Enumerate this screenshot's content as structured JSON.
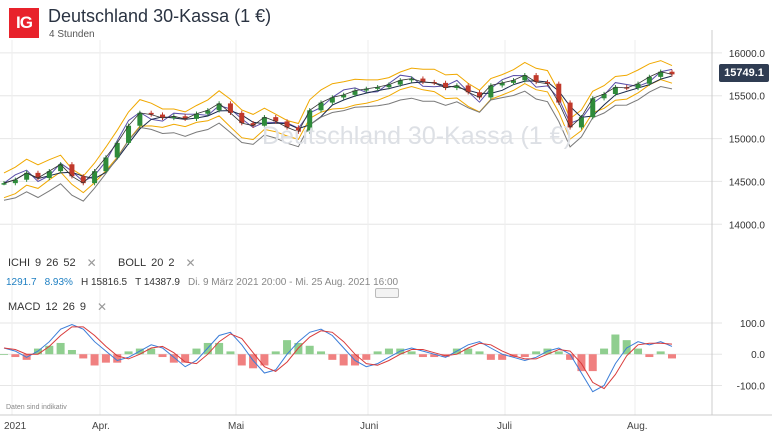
{
  "header": {
    "logo_text": "IG",
    "title": "Deutschland 30-Kassa (1 €)",
    "subtitle": "4 Stunden"
  },
  "watermark": "Deutschland 30-Kassa (1 €)",
  "current_price": "15749.1",
  "indicators": {
    "ichi": {
      "name": "ICHI",
      "params": [
        "9",
        "26",
        "52"
      ]
    },
    "boll": {
      "name": "BOLL",
      "params": [
        "20",
        "2"
      ]
    },
    "macd": {
      "name": "MACD",
      "params": [
        "12",
        "26",
        "9"
      ]
    },
    "close_symbol": "✕"
  },
  "stats": {
    "change": "1291.7",
    "change_pct": "8.93%",
    "high": "H 15816.5",
    "low": "T 14387.9",
    "range": "Di. 9 März 2021 20:00 - Mi. 25 Aug. 2021 16:00"
  },
  "footer_note": "Daten sind indikativ",
  "chart_data": [
    {
      "type": "line",
      "title": "",
      "y_ticks": [
        "16000.0",
        "15500.0",
        "15000.0",
        "14500.0",
        "14000.0"
      ],
      "ylim": [
        13700,
        16150
      ],
      "x_ticks": [
        "2021",
        "Apr.",
        "Mai",
        "Juni",
        "Juli",
        "Aug."
      ],
      "series": [
        {
          "values": [
            14480,
            14520,
            14600,
            14540,
            14620,
            14700,
            14560,
            14480,
            14620,
            14780,
            14950,
            15150,
            15300,
            15280,
            15240,
            15260,
            15230,
            15290,
            15330,
            15410,
            15300,
            15180,
            15150,
            15250,
            15200,
            15130,
            15080,
            15330,
            15420,
            15480,
            15510,
            15560,
            15580,
            15600,
            15630,
            15680,
            15700,
            15660,
            15650,
            15590,
            15620,
            15540,
            15480,
            15620,
            15650,
            15680,
            15740,
            15660,
            15640,
            15420,
            15130,
            15250,
            15470,
            15520,
            15600,
            15590,
            15640,
            15720,
            15780,
            15749
          ]
        }
      ],
      "grid": true,
      "legend": "none"
    },
    {
      "type": "bar",
      "title": "MACD",
      "y_ticks": [
        "100.0",
        "0.0",
        "-100.0"
      ],
      "ylim": [
        -140,
        135
      ],
      "series": [
        {
          "name": "MACD",
          "values": [
            20,
            10,
            -10,
            10,
            40,
            80,
            95,
            80,
            40,
            10,
            -20,
            -10,
            10,
            30,
            20,
            -10,
            -40,
            -20,
            20,
            60,
            70,
            30,
            -20,
            -60,
            -50,
            0,
            40,
            70,
            80,
            60,
            20,
            -20,
            -40,
            -30,
            -10,
            10,
            20,
            10,
            0,
            -10,
            10,
            30,
            40,
            20,
            0,
            -10,
            -20,
            -10,
            10,
            20,
            0,
            -60,
            -120,
            -100,
            -30,
            20,
            40,
            30,
            40,
            25
          ]
        }
      ],
      "grid": true,
      "legend": "none"
    }
  ]
}
